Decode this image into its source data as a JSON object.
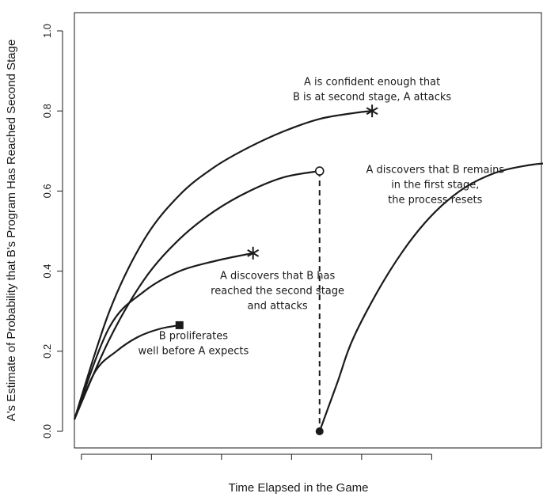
{
  "chart_data": {
    "type": "line",
    "xlabel": "Time Elapsed in the Game",
    "ylabel": "A's Estimate of Probability that B's Program Has Reached Second Stage",
    "ylim": [
      0,
      1
    ],
    "xlim": [
      0,
      100
    ],
    "y_ticks": [
      {
        "value": 0.0,
        "label": "0.0"
      },
      {
        "value": 0.2,
        "label": "0.2"
      },
      {
        "value": 0.4,
        "label": "0.4"
      },
      {
        "value": 0.6,
        "label": "0.6"
      },
      {
        "value": 0.8,
        "label": "0.8"
      },
      {
        "value": 1.0,
        "label": "1.0"
      }
    ],
    "x_ticks": [
      2,
      22,
      42,
      62,
      82,
      102
    ],
    "grid": false,
    "series": [
      {
        "curve": [
          [
            0,
            0.03
          ],
          [
            6,
            0.15
          ],
          [
            12,
            0.2
          ],
          [
            18,
            0.235
          ],
          [
            24,
            0.255
          ],
          [
            30,
            0.265
          ]
        ],
        "end_marker": "square"
      },
      {
        "curve": [
          [
            0,
            0.03
          ],
          [
            10,
            0.26
          ],
          [
            20,
            0.35
          ],
          [
            30,
            0.4
          ],
          [
            40,
            0.425
          ],
          [
            48,
            0.44
          ],
          [
            51,
            0.445
          ]
        ],
        "end_marker": "asterisk"
      },
      {
        "curve": [
          [
            0,
            0.03
          ],
          [
            10,
            0.23
          ],
          [
            20,
            0.38
          ],
          [
            30,
            0.48
          ],
          [
            40,
            0.55
          ],
          [
            50,
            0.6
          ],
          [
            60,
            0.635
          ],
          [
            70,
            0.65
          ]
        ],
        "end_marker": "open-circle"
      },
      {
        "curve": [
          [
            0,
            0.03
          ],
          [
            10,
            0.3
          ],
          [
            20,
            0.48
          ],
          [
            30,
            0.59
          ],
          [
            40,
            0.66
          ],
          [
            50,
            0.71
          ],
          [
            60,
            0.75
          ],
          [
            70,
            0.78
          ],
          [
            80,
            0.795
          ],
          [
            85,
            0.8
          ]
        ],
        "end_marker": "asterisk"
      },
      {
        "curve": [
          [
            70,
            0.0
          ],
          [
            75,
            0.12
          ],
          [
            80,
            0.24
          ],
          [
            90,
            0.4
          ],
          [
            100,
            0.52
          ],
          [
            110,
            0.6
          ],
          [
            120,
            0.645
          ],
          [
            130,
            0.665
          ],
          [
            136,
            0.67
          ]
        ],
        "start_marker": "filled-circle"
      }
    ],
    "reset_line": {
      "x": 70,
      "from": 0.65,
      "to": 0.0,
      "style": "dashed"
    },
    "annotations": [
      {
        "lines": [
          "B proliferates",
          "well before A expects"
        ],
        "x": 34,
        "y": 0.23
      },
      {
        "lines": [
          "A discovers that B has",
          "reached the second stage",
          "and attacks"
        ],
        "x": 58,
        "y": 0.38
      },
      {
        "lines": [
          "A discovers that B remains",
          "in the first stage,",
          "the process resets"
        ],
        "x": 103,
        "y": 0.645
      },
      {
        "lines": [
          "A is confident enough that",
          "B is at second stage, A attacks"
        ],
        "x": 85,
        "y": 0.865
      }
    ]
  }
}
